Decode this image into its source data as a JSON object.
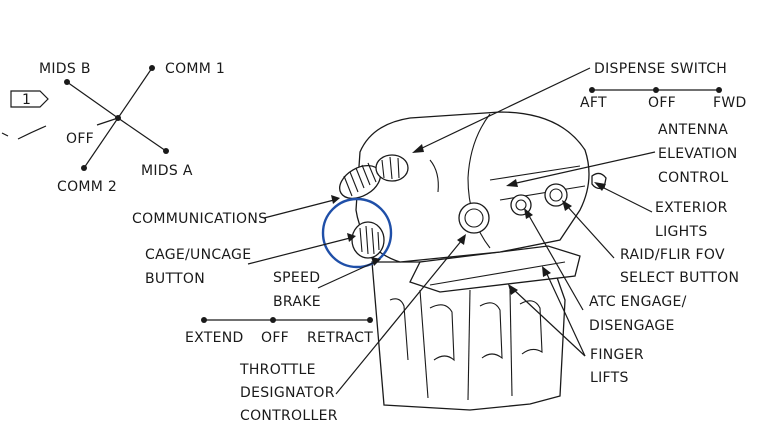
{
  "labels": {
    "mids_b": "MIDS B",
    "comm_1": "COMM 1",
    "off_top": "OFF",
    "comm_2": "COMM 2",
    "mids_a": "MIDS A",
    "callout_num": "1",
    "dispense_switch": "DISPENSE SWITCH",
    "aft": "AFT",
    "off_dispense": "OFF",
    "fwd": "FWD",
    "antenna_1": "ANTENNA",
    "antenna_2": "ELEVATION",
    "antenna_3": "CONTROL",
    "exterior_1": "EXTERIOR",
    "exterior_2": "LIGHTS",
    "communications": "COMMUNICATIONS",
    "cage_1": "CAGE/UNCAGE",
    "cage_2": "BUTTON",
    "raid_1": "RAID/FLIR FOV",
    "raid_2": "SELECT BUTTON",
    "speed_1": "SPEED",
    "speed_2": "BRAKE",
    "atc_1": "ATC ENGAGE/",
    "atc_2": "DISENGAGE",
    "extend": "EXTEND",
    "off_speed": "OFF",
    "retract": "RETRACT",
    "finger_1": "FINGER",
    "finger_2": "LIFTS",
    "tdc_1": "THROTTLE",
    "tdc_2": "DESIGNATOR",
    "tdc_3": "CONTROLLER"
  },
  "colors": {
    "line": "#1a1a1a",
    "highlight_circle": "#1f4fa8",
    "background": "#ffffff"
  }
}
